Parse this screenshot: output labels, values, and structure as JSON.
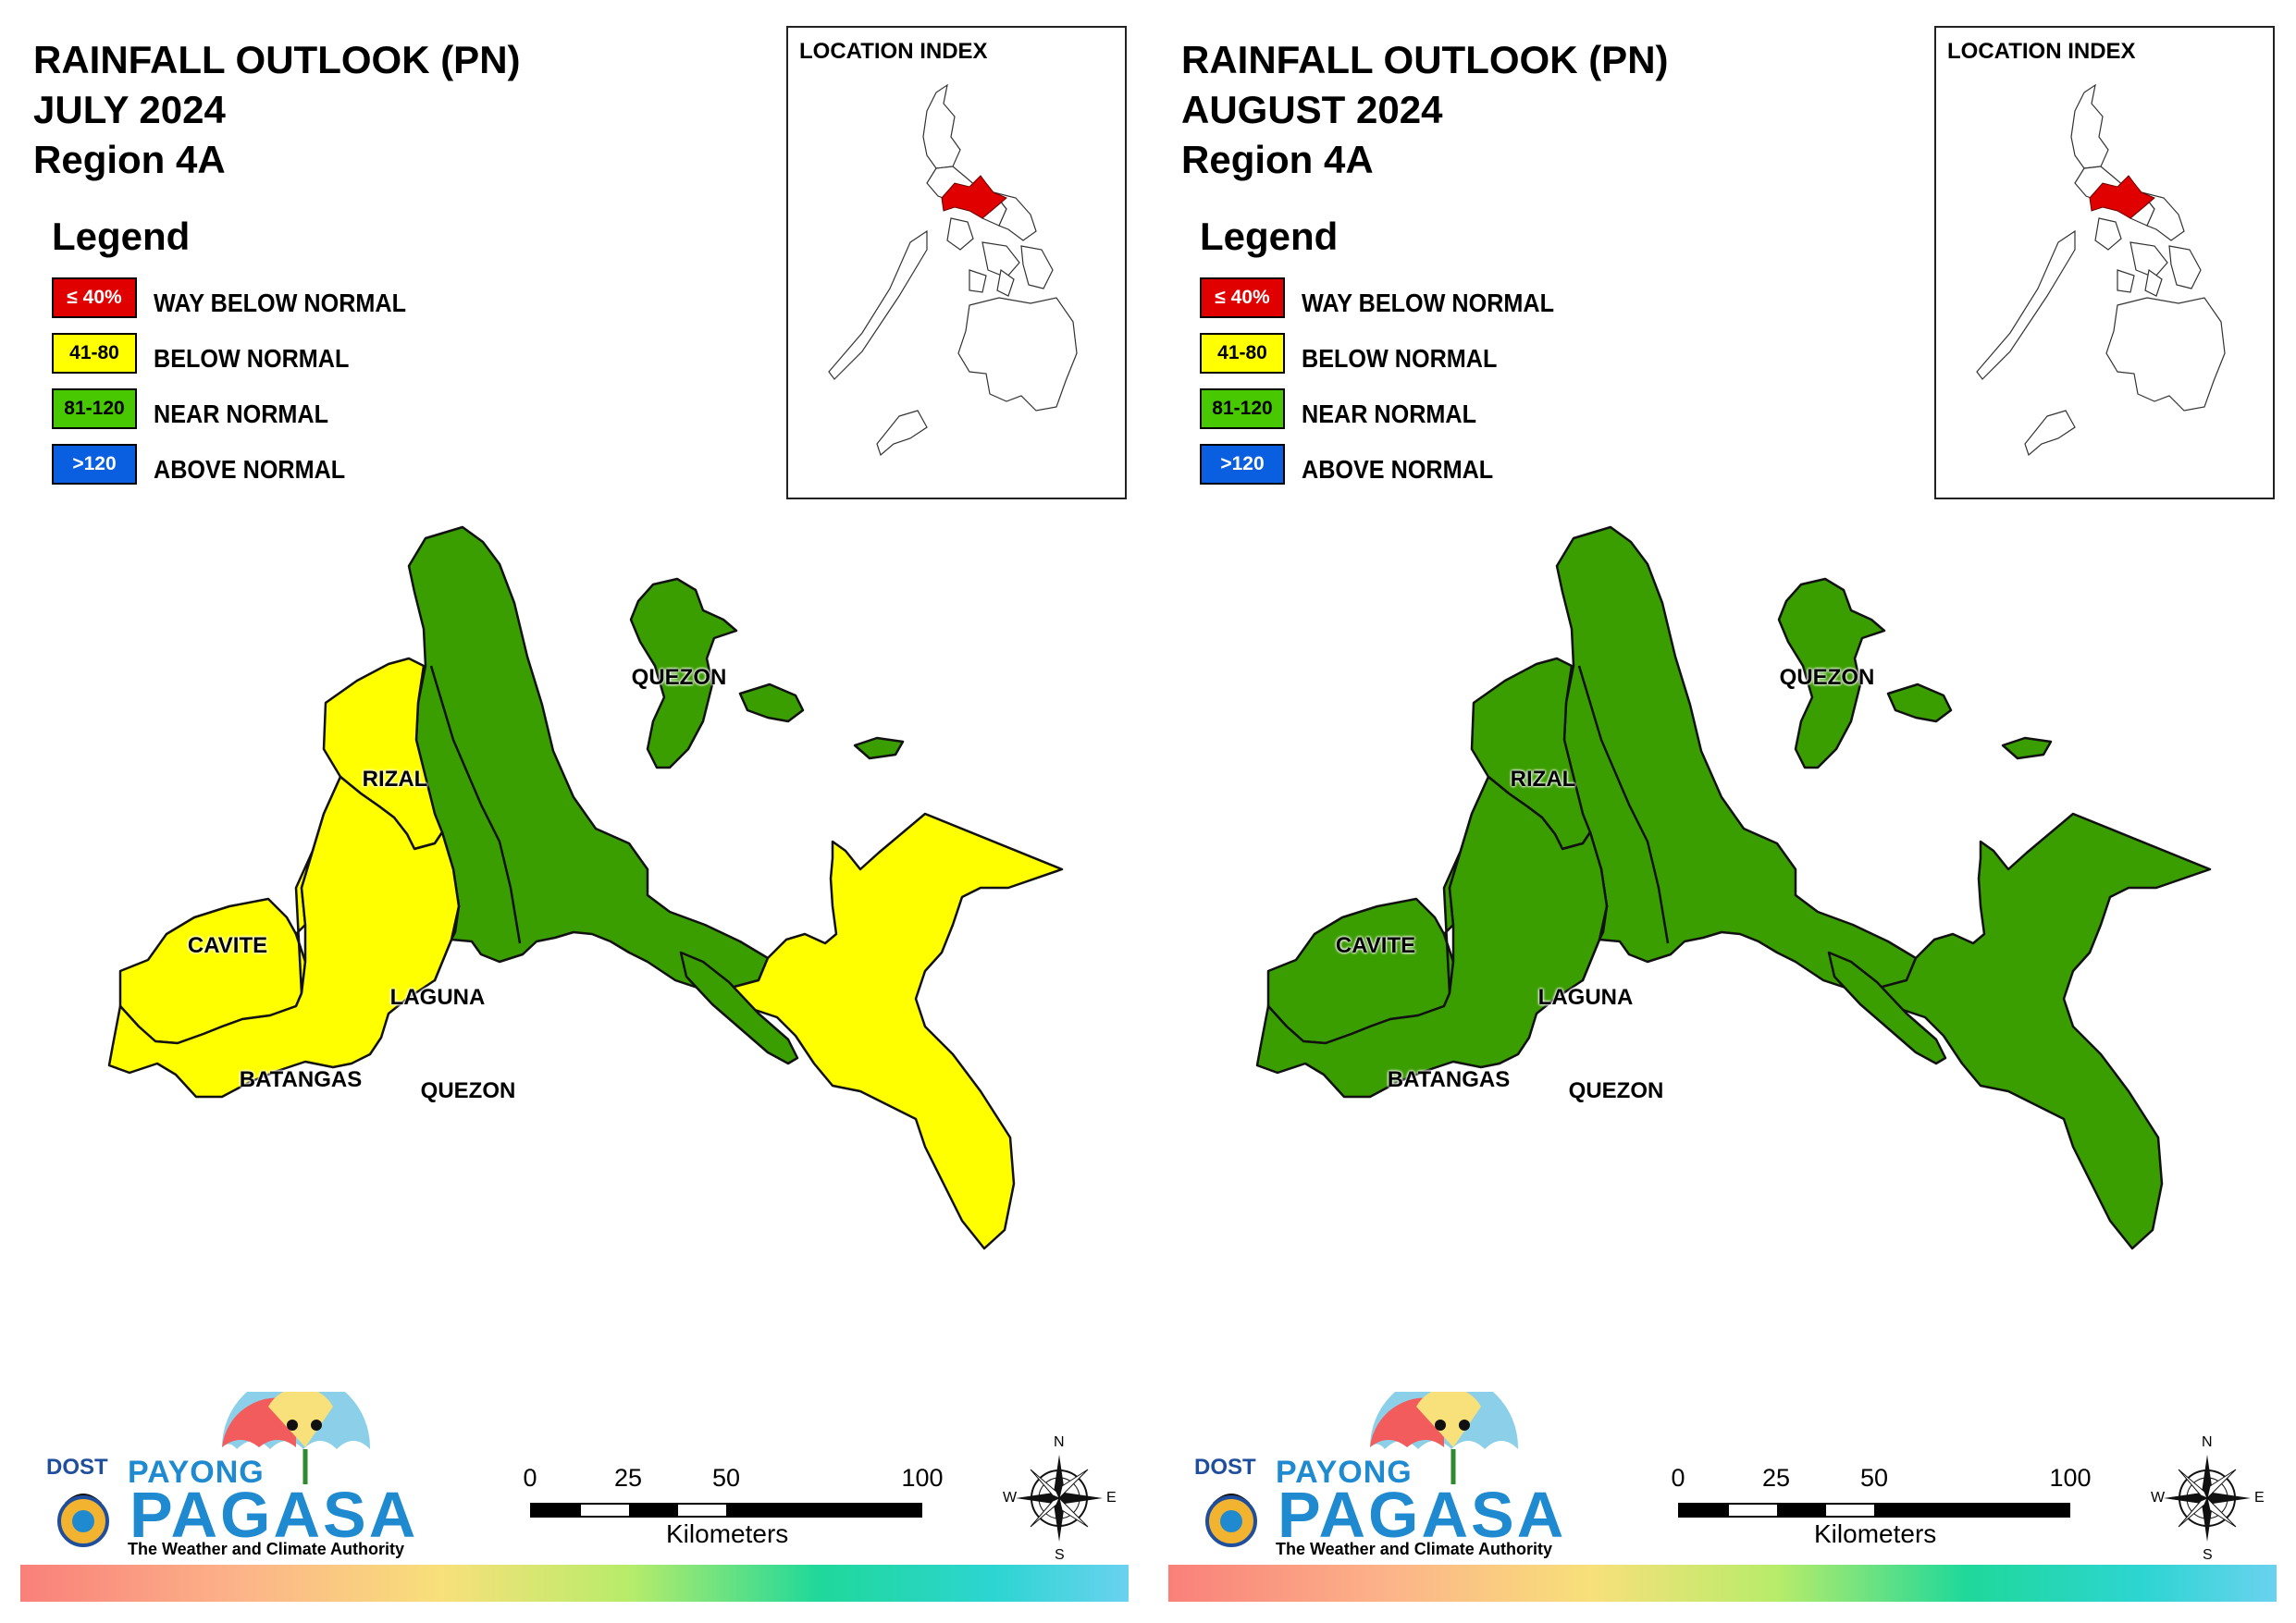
{
  "panels": [
    {
      "title_line1": "RAINFALL OUTLOOK (PN)",
      "title_line2": "JULY 2024",
      "title_line3": "Region 4A",
      "fills": {
        "north_quezon": "#3a9d00",
        "rizal": "#ffff00",
        "cavite": "#ffff00",
        "laguna": "#ffff00",
        "batangas": "#ffff00",
        "south_quezon_east": "#ffff00",
        "islands": "#3a9d00"
      }
    },
    {
      "title_line1": "RAINFALL OUTLOOK (PN)",
      "title_line2": "AUGUST 2024",
      "title_line3": "Region 4A",
      "fills": {
        "north_quezon": "#3a9d00",
        "rizal": "#3a9d00",
        "cavite": "#3a9d00",
        "laguna": "#3a9d00",
        "batangas": "#3a9d00",
        "south_quezon_east": "#3a9d00",
        "islands": "#3a9d00"
      }
    }
  ],
  "legend": {
    "heading": "Legend",
    "items": [
      {
        "range": "≤ 40%",
        "label": "WAY BELOW NORMAL",
        "color": "#e00000",
        "text_color": "#ffffff"
      },
      {
        "range": "41-80",
        "label": "BELOW NORMAL",
        "color": "#ffff00",
        "text_color": "#000000"
      },
      {
        "range": "81-120",
        "label": "NEAR NORMAL",
        "color": "#48c800",
        "text_color": "#000000"
      },
      {
        "range": ">120",
        "label": "ABOVE NORMAL",
        "color": "#0a5ee0",
        "text_color": "#ffffff"
      }
    ]
  },
  "location_index": {
    "title": "LOCATION INDEX",
    "highlight_color": "#e00000"
  },
  "place_labels": {
    "quezon_north": "QUEZON",
    "rizal": "RIZAL",
    "cavite": "CAVITE",
    "laguna": "LAGUNA",
    "batangas": "BATANGAS",
    "quezon_south": "QUEZON"
  },
  "scale_bar": {
    "ticks": [
      "0",
      "25",
      "50",
      "100"
    ],
    "unit": "Kilometers"
  },
  "compass": {
    "n": "N",
    "e": "E",
    "s": "S",
    "w": "W"
  },
  "logo": {
    "dost": "DOST",
    "payong": "PAYONG",
    "pagasa": "PAGASA",
    "tagline": "The Weather and Climate Authority"
  },
  "colors": {
    "green": "#3a9d00",
    "yellow": "#ffff00"
  }
}
